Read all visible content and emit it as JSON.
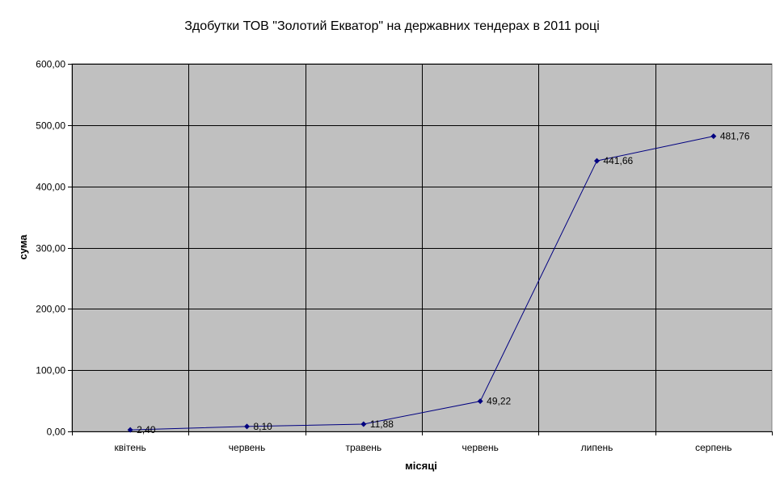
{
  "chart_data": {
    "type": "line",
    "title": "Здобутки ТОВ \"Золотий Екватор\" на державних тендерах в 2011 році",
    "xlabel": "місяці",
    "ylabel": "сума",
    "categories": [
      "квітень",
      "червень",
      "травень",
      "червень",
      "липень",
      "серпень"
    ],
    "series": [
      {
        "values": [
          2.4,
          8.1,
          11.88,
          49.22,
          441.66,
          481.76
        ],
        "labels": [
          "2,40",
          "8,10",
          "11,88",
          "49,22",
          "441,66",
          "481,76"
        ]
      }
    ],
    "ylim": [
      0,
      600
    ],
    "yticks": [
      0,
      100,
      200,
      300,
      400,
      500,
      600
    ],
    "ytick_labels": [
      "0,00",
      "100,00",
      "200,00",
      "300,00",
      "400,00",
      "500,00",
      "600,00"
    ],
    "grid": true,
    "legend": "none",
    "colors": {
      "plot_background": "#c0c0c0",
      "grid": "#000000",
      "line": "#000080",
      "marker": "#000080"
    }
  }
}
